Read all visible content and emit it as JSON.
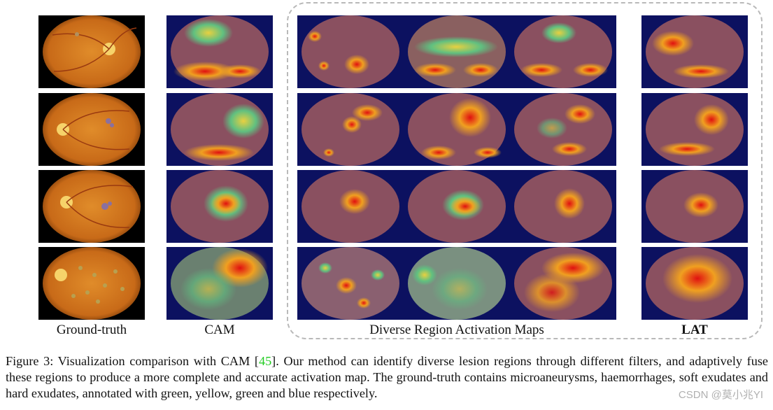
{
  "figure": {
    "columns": [
      {
        "key": "gt",
        "label": "Ground-truth",
        "bold": false
      },
      {
        "key": "cam",
        "label": "CAM",
        "bold": false
      },
      {
        "key": "diverse",
        "label": "Diverse Region Activation Maps",
        "bold": false
      },
      {
        "key": "lat",
        "label": "LAT",
        "bold": true
      }
    ],
    "rows": 4
  },
  "caption": {
    "prefix": "Figure 3: Visualization comparison with CAM [",
    "ref": "45",
    "suffix": "]. Our method can identify diverse lesion regions through different filters, and adaptively fuse these regions to produce a more complete and accurate activation map.  The ground-truth contains microaneurysms, haemorrhages, soft exudates and hard exudates, annotated with green, yellow, green and blue respectively."
  },
  "watermark": "CSDN @莫小兆YI"
}
